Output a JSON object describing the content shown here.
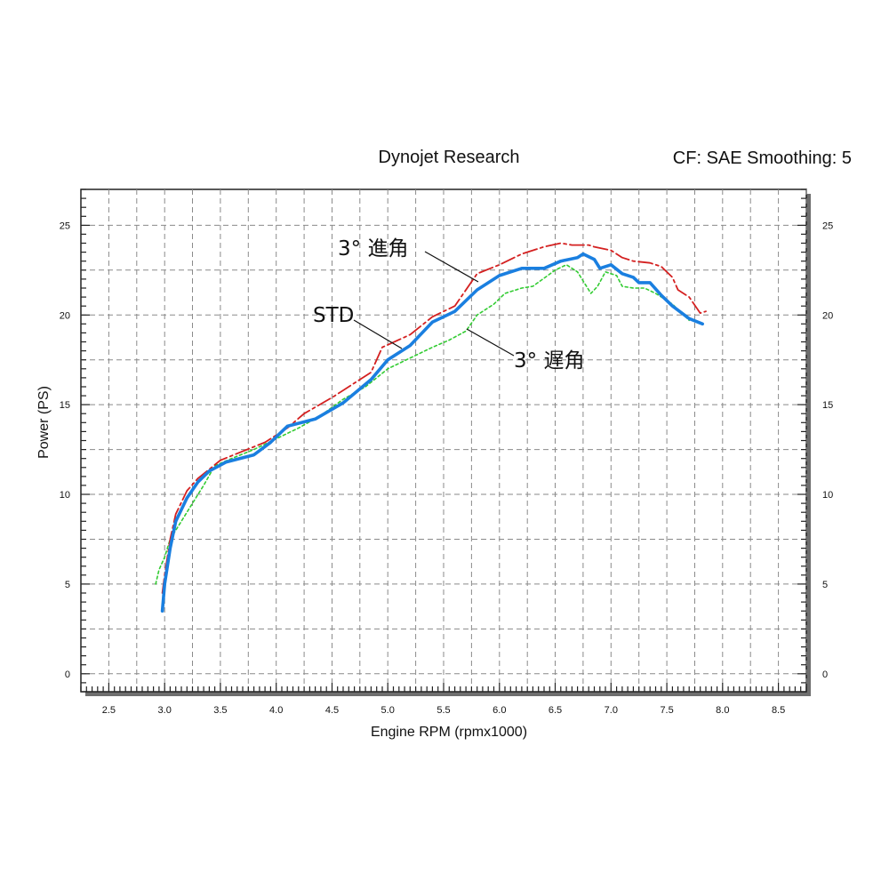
{
  "header": {
    "left": "Dynojet Research",
    "right": "CF: SAE Smoothing: 5"
  },
  "chart_data": {
    "type": "line",
    "title": "Dynojet Research",
    "subtitle": "CF: SAE Smoothing: 5",
    "xlabel": "Engine RPM (rpmx1000)",
    "ylabel": "Power (PS)",
    "xlim": [
      2.25,
      8.75
    ],
    "ylim": [
      -1,
      27
    ],
    "x_ticks": [
      "2.5",
      "3.0",
      "3.5",
      "4.0",
      "4.5",
      "5.0",
      "5.5",
      "6.0",
      "6.5",
      "7.0",
      "7.5",
      "8.0",
      "8.5"
    ],
    "y_ticks": [
      "0",
      "5",
      "10",
      "15",
      "20",
      "25"
    ],
    "grid": true,
    "colors": {
      "std": "#1a7fe0",
      "advance": "#d42020",
      "retard": "#33cc33"
    },
    "series": [
      {
        "name": "STD",
        "values": [
          [
            2.98,
            3.5
          ],
          [
            3.0,
            5.0
          ],
          [
            3.05,
            7.0
          ],
          [
            3.1,
            8.5
          ],
          [
            3.2,
            9.8
          ],
          [
            3.3,
            10.7
          ],
          [
            3.4,
            11.3
          ],
          [
            3.55,
            11.8
          ],
          [
            3.8,
            12.2
          ],
          [
            3.95,
            12.9
          ],
          [
            4.1,
            13.8
          ],
          [
            4.35,
            14.2
          ],
          [
            4.6,
            15.1
          ],
          [
            4.85,
            16.4
          ],
          [
            5.0,
            17.5
          ],
          [
            5.2,
            18.3
          ],
          [
            5.4,
            19.6
          ],
          [
            5.6,
            20.2
          ],
          [
            5.8,
            21.4
          ],
          [
            6.0,
            22.2
          ],
          [
            6.2,
            22.6
          ],
          [
            6.4,
            22.6
          ],
          [
            6.55,
            23.0
          ],
          [
            6.7,
            23.2
          ],
          [
            6.75,
            23.4
          ],
          [
            6.85,
            23.1
          ],
          [
            6.9,
            22.6
          ],
          [
            7.0,
            22.8
          ],
          [
            7.1,
            22.3
          ],
          [
            7.2,
            22.1
          ],
          [
            7.25,
            21.8
          ],
          [
            7.35,
            21.8
          ],
          [
            7.45,
            21.1
          ],
          [
            7.55,
            20.5
          ],
          [
            7.7,
            19.8
          ],
          [
            7.82,
            19.5
          ]
        ]
      },
      {
        "name": "3° 進角",
        "values": [
          [
            2.98,
            4.5
          ],
          [
            3.0,
            5.5
          ],
          [
            3.05,
            7.5
          ],
          [
            3.1,
            8.9
          ],
          [
            3.2,
            10.2
          ],
          [
            3.3,
            10.9
          ],
          [
            3.5,
            11.9
          ],
          [
            3.7,
            12.4
          ],
          [
            3.9,
            12.9
          ],
          [
            4.1,
            13.7
          ],
          [
            4.25,
            14.5
          ],
          [
            4.5,
            15.4
          ],
          [
            4.7,
            16.2
          ],
          [
            4.85,
            16.8
          ],
          [
            4.95,
            18.2
          ],
          [
            5.2,
            18.9
          ],
          [
            5.4,
            19.9
          ],
          [
            5.6,
            20.5
          ],
          [
            5.8,
            22.3
          ],
          [
            6.0,
            22.8
          ],
          [
            6.2,
            23.4
          ],
          [
            6.4,
            23.8
          ],
          [
            6.55,
            24.0
          ],
          [
            6.65,
            23.9
          ],
          [
            6.8,
            23.9
          ],
          [
            6.85,
            23.8
          ],
          [
            7.0,
            23.6
          ],
          [
            7.1,
            23.2
          ],
          [
            7.2,
            23.0
          ],
          [
            7.35,
            22.9
          ],
          [
            7.45,
            22.7
          ],
          [
            7.55,
            22.1
          ],
          [
            7.6,
            21.4
          ],
          [
            7.7,
            21.0
          ],
          [
            7.8,
            20.1
          ],
          [
            7.85,
            20.2
          ]
        ]
      },
      {
        "name": "3° 遅角",
        "values": [
          [
            2.92,
            5.0
          ],
          [
            2.95,
            5.8
          ],
          [
            3.0,
            6.5
          ],
          [
            3.05,
            7.5
          ],
          [
            3.15,
            8.5
          ],
          [
            3.25,
            9.5
          ],
          [
            3.35,
            10.5
          ],
          [
            3.45,
            11.6
          ],
          [
            3.6,
            12.0
          ],
          [
            3.8,
            12.5
          ],
          [
            4.0,
            13.1
          ],
          [
            4.2,
            13.7
          ],
          [
            4.4,
            14.4
          ],
          [
            4.6,
            15.3
          ],
          [
            4.8,
            16.0
          ],
          [
            5.0,
            17.0
          ],
          [
            5.2,
            17.6
          ],
          [
            5.4,
            18.2
          ],
          [
            5.55,
            18.6
          ],
          [
            5.7,
            19.1
          ],
          [
            5.8,
            20.0
          ],
          [
            5.95,
            20.6
          ],
          [
            6.05,
            21.2
          ],
          [
            6.2,
            21.5
          ],
          [
            6.3,
            21.6
          ],
          [
            6.5,
            22.5
          ],
          [
            6.6,
            22.8
          ],
          [
            6.7,
            22.4
          ],
          [
            6.75,
            21.9
          ],
          [
            6.82,
            21.2
          ],
          [
            6.88,
            21.6
          ],
          [
            6.95,
            22.4
          ],
          [
            7.05,
            22.2
          ],
          [
            7.1,
            21.6
          ],
          [
            7.2,
            21.5
          ],
          [
            7.3,
            21.5
          ],
          [
            7.4,
            21.2
          ],
          [
            7.55,
            20.6
          ],
          [
            7.7,
            19.7
          ]
        ]
      }
    ],
    "annotations": [
      {
        "text": "3°  進角",
        "series": "3° 進角"
      },
      {
        "text": "STD",
        "series": "STD"
      },
      {
        "text": "3°  遅角",
        "series": "3° 遅角"
      }
    ]
  }
}
